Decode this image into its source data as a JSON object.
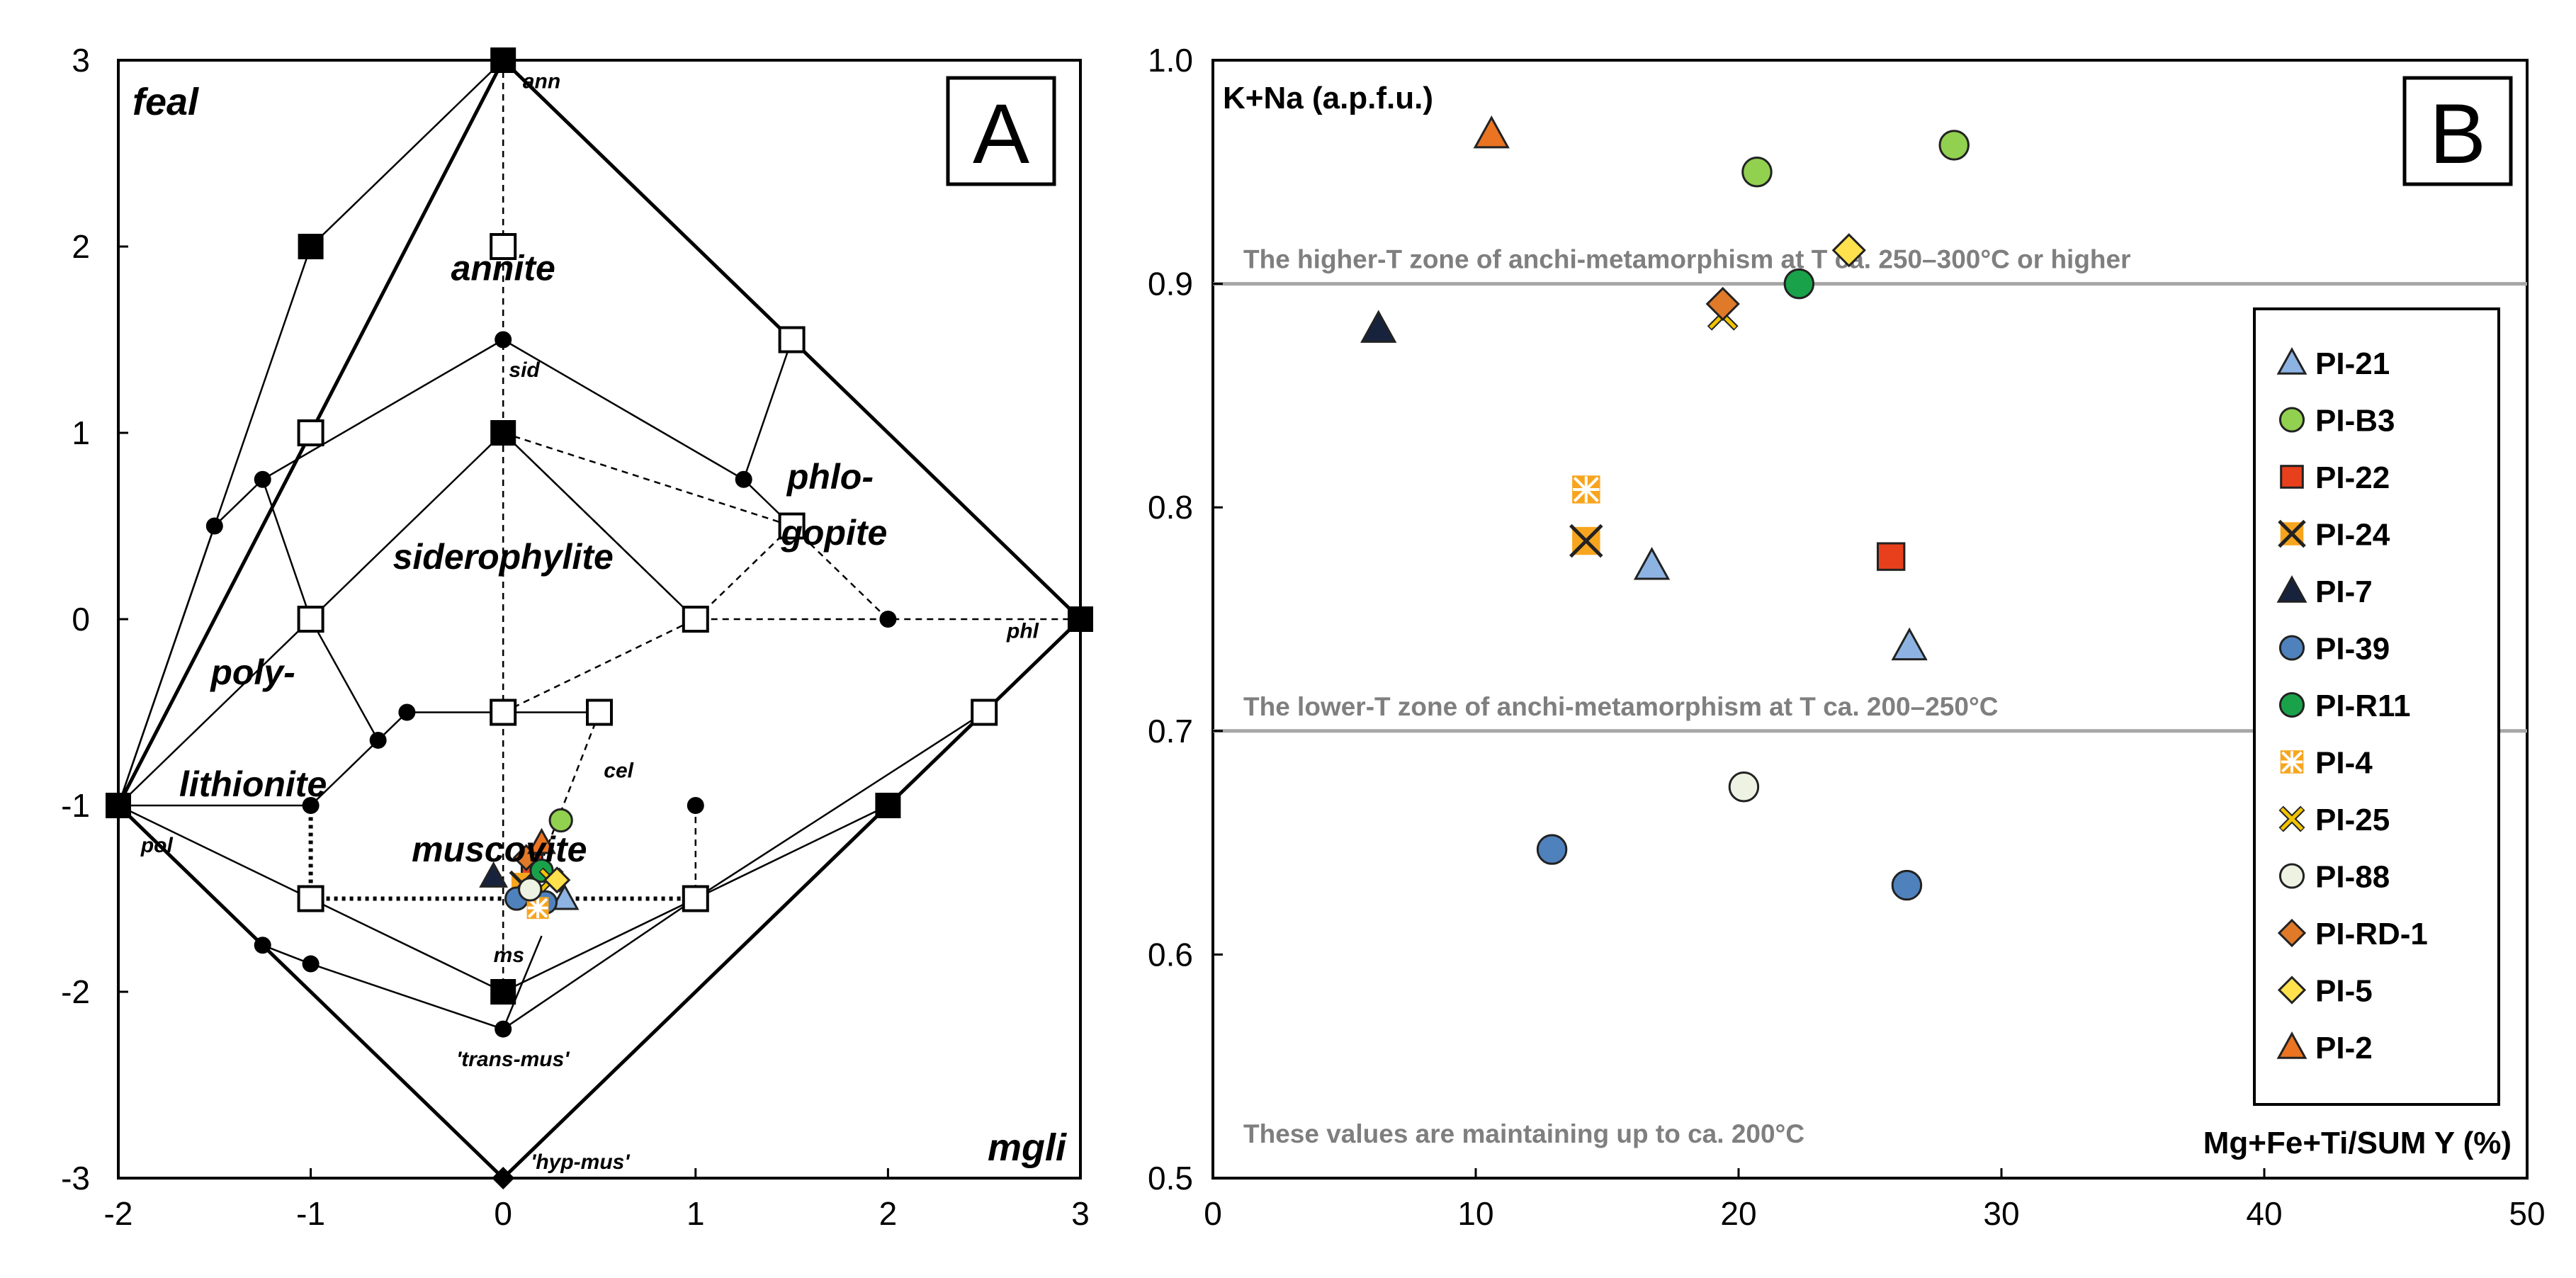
{
  "chart_data": [
    {
      "panel": "A",
      "type": "scatter",
      "panel_label": "A",
      "xlim": [
        -2,
        3
      ],
      "ylim": [
        -3,
        3
      ],
      "xticks": [
        "-2",
        "-1",
        "0",
        "1",
        "2",
        "3"
      ],
      "yticks": [
        "3",
        "2",
        "1",
        "0",
        "-1",
        "-2",
        "-3"
      ],
      "corner_labels": {
        "top_left": "feal",
        "bottom_right": "mgli"
      },
      "field_labels": [
        {
          "text": "annite",
          "x": 0.0,
          "y": 1.82
        },
        {
          "text": "siderophylite",
          "x": 0.0,
          "y": 0.27
        },
        {
          "text": "phlo-",
          "x": 1.7,
          "y": 0.7
        },
        {
          "text": "gopite",
          "x": 1.72,
          "y": 0.4
        },
        {
          "text": "poly-",
          "x": -1.3,
          "y": -0.35
        },
        {
          "text": "lithionite",
          "x": -1.3,
          "y": -0.95
        },
        {
          "text": "muscovite",
          "x": -0.02,
          "y": -1.3
        }
      ],
      "end_member_labels": [
        {
          "text": "ann",
          "x": 0.2,
          "y": 2.85
        },
        {
          "text": "sid",
          "x": 0.11,
          "y": 1.3
        },
        {
          "text": "phl",
          "x": 2.7,
          "y": -0.1
        },
        {
          "text": "pol",
          "x": -1.8,
          "y": -1.25
        },
        {
          "text": "cel",
          "x": 0.6,
          "y": -0.85
        },
        {
          "text": "ms",
          "x": 0.03,
          "y": -1.84
        },
        {
          "text": "'trans-mus'",
          "x": 0.05,
          "y": -2.4
        },
        {
          "text": "'hyp-mus'",
          "x": 0.4,
          "y": -2.95
        }
      ],
      "filled_squares": [
        [
          0,
          3
        ],
        [
          -1,
          2
        ],
        [
          0,
          1
        ],
        [
          3,
          0
        ],
        [
          -2,
          -1
        ],
        [
          2,
          -1
        ],
        [
          0,
          -2
        ]
      ],
      "open_squares": [
        [
          0,
          2
        ],
        [
          -1,
          1
        ],
        [
          1.5,
          1.5
        ],
        [
          1.5,
          0.5
        ],
        [
          -1,
          0
        ],
        [
          1,
          0
        ],
        [
          0,
          -0.5
        ],
        [
          0.5,
          -0.5
        ],
        [
          2.5,
          -0.5
        ],
        [
          -1,
          -1.5
        ],
        [
          1,
          -1.5
        ]
      ],
      "circle_nodes": [
        [
          0,
          1.5
        ],
        [
          -1.5,
          0.5
        ],
        [
          -1.25,
          0.75
        ],
        [
          1.25,
          0.75
        ],
        [
          2,
          0
        ],
        [
          -0.5,
          -0.5
        ],
        [
          -0.65,
          -0.65
        ],
        [
          -1,
          -1
        ],
        [
          1,
          -1
        ],
        [
          -1.25,
          -1.75
        ],
        [
          -1,
          -1.85
        ],
        [
          0,
          -2.2
        ]
      ],
      "diamond_nodes": [
        [
          0,
          -3
        ]
      ],
      "solid_lines": [
        [
          [
            0,
            3
          ],
          [
            3,
            0
          ],
          [
            0,
            -3
          ],
          [
            -2,
            -1
          ],
          [
            0,
            3
          ]
        ],
        [
          [
            -2,
            -1
          ],
          [
            -1,
            2
          ],
          [
            0,
            3
          ]
        ],
        [
          [
            0,
            3
          ],
          [
            1.5,
            1.5
          ],
          [
            3,
            0
          ]
        ],
        [
          [
            -2,
            -1
          ],
          [
            -1.5,
            0.5
          ],
          [
            -1.25,
            0.75
          ],
          [
            0,
            1.5
          ],
          [
            1.25,
            0.75
          ],
          [
            1.5,
            0.5
          ]
        ],
        [
          [
            -1.25,
            0.75
          ],
          [
            -1,
            0
          ],
          [
            -0.65,
            -0.65
          ],
          [
            -0.5,
            -0.5
          ],
          [
            0,
            -0.5
          ],
          [
            0.5,
            -0.5
          ]
        ],
        [
          [
            -2,
            -1
          ],
          [
            -1,
            0
          ],
          [
            0,
            1
          ],
          [
            1,
            0
          ]
        ],
        [
          [
            1.5,
            1.5
          ],
          [
            1.25,
            0.75
          ]
        ],
        [
          [
            -2,
            -1
          ],
          [
            -1,
            -1
          ],
          [
            -0.65,
            -0.65
          ]
        ],
        [
          [
            -2,
            -1
          ],
          [
            -1.25,
            -1.75
          ],
          [
            -1,
            -1.85
          ]
        ],
        [
          [
            -2,
            -1
          ],
          [
            -1,
            -1.5
          ],
          [
            0,
            -2
          ],
          [
            1,
            -1.5
          ],
          [
            2,
            -1
          ],
          [
            3,
            0
          ]
        ],
        [
          [
            -1,
            -1.85
          ],
          [
            0,
            -2.2
          ],
          [
            1,
            -1.5
          ],
          [
            2.5,
            -0.5
          ]
        ],
        [
          [
            0,
            -2.2
          ],
          [
            0.2,
            -1.7
          ]
        ]
      ],
      "dashed_lines": [
        [
          [
            0,
            3
          ],
          [
            0,
            -2
          ]
        ],
        [
          [
            -2,
            -1
          ],
          [
            -1,
            1
          ],
          [
            0,
            3
          ]
        ],
        [
          [
            0,
            1
          ],
          [
            1.5,
            0.5
          ],
          [
            2,
            0
          ],
          [
            3,
            0
          ]
        ],
        [
          [
            0,
            1
          ],
          [
            1,
            0
          ],
          [
            2,
            0
          ]
        ],
        [
          [
            0,
            -0.5
          ],
          [
            1,
            0
          ]
        ],
        [
          [
            0.5,
            -0.5
          ],
          [
            0.2,
            -1.3
          ]
        ],
        [
          [
            1,
            -1
          ],
          [
            1,
            -1.5
          ]
        ],
        [
          [
            1,
            0
          ],
          [
            1.5,
            0.5
          ]
        ]
      ],
      "dotted_lines": [
        [
          [
            -1,
            -1.5
          ],
          [
            1,
            -1.5
          ]
        ],
        [
          [
            -1,
            -1.5
          ],
          [
            -1,
            -1
          ]
        ]
      ],
      "samples": [
        {
          "name": "PI-21",
          "x": 0.32,
          "y": -1.5
        },
        {
          "name": "PI-B3",
          "x": 0.3,
          "y": -1.08
        },
        {
          "name": "PI-22",
          "x": 0.15,
          "y": -1.32
        },
        {
          "name": "PI-24",
          "x": 0.1,
          "y": -1.42
        },
        {
          "name": "PI-7",
          "x": -0.05,
          "y": -1.38
        },
        {
          "name": "PI-39",
          "x": 0.07,
          "y": -1.5
        },
        {
          "name": "PI-39",
          "x": 0.22,
          "y": -1.52
        },
        {
          "name": "PI-R11",
          "x": 0.2,
          "y": -1.35
        },
        {
          "name": "PI-4",
          "x": 0.18,
          "y": -1.55
        },
        {
          "name": "PI-25",
          "x": 0.25,
          "y": -1.4
        },
        {
          "name": "PI-88",
          "x": 0.14,
          "y": -1.45
        },
        {
          "name": "PI-RD-1",
          "x": 0.12,
          "y": -1.28
        },
        {
          "name": "PI-5",
          "x": 0.28,
          "y": -1.4
        },
        {
          "name": "PI-2",
          "x": 0.2,
          "y": -1.2
        }
      ]
    },
    {
      "panel": "B",
      "type": "scatter",
      "panel_label": "B",
      "xlabel": "Mg+Fe+Ti/SUM Y (%)",
      "ylabel": "K+Na (a.p.f.u.)",
      "xlim": [
        0,
        50
      ],
      "ylim": [
        0.5,
        1.0
      ],
      "xticks": [
        "0",
        "10",
        "20",
        "30",
        "40",
        "50"
      ],
      "yticks": [
        "1.0",
        "0.9",
        "0.8",
        "0.7",
        "0.6",
        "0.5"
      ],
      "reference_lines": [
        {
          "y": 0.9,
          "label": "The higher-T zone of anchi-metamorphism at T ca. 250–300°C or higher"
        },
        {
          "y": 0.7,
          "label": "The lower-T zone of anchi-metamorphism at T ca. 200–250°C"
        }
      ],
      "bottom_note": "These values are maintaining up to ca. 200°C",
      "series": [
        {
          "name": "PI-21",
          "marker": "triangle",
          "color": "#8db3e2",
          "points": [
            [
              16.7,
              0.774
            ],
            [
              26.5,
              0.738
            ]
          ]
        },
        {
          "name": "PI-B3",
          "marker": "circle",
          "color": "#92d050",
          "points": [
            [
              20.7,
              0.95
            ],
            [
              28.2,
              0.962
            ]
          ]
        },
        {
          "name": "PI-22",
          "marker": "square",
          "color": "#e8401c",
          "points": [
            [
              25.8,
              0.778
            ]
          ]
        },
        {
          "name": "PI-24",
          "marker": "square-x",
          "color": "#f7a51e",
          "points": [
            [
              14.2,
              0.785
            ]
          ]
        },
        {
          "name": "PI-7",
          "marker": "triangle",
          "color": "#17233d",
          "points": [
            [
              6.3,
              0.88
            ]
          ]
        },
        {
          "name": "PI-39",
          "marker": "circle",
          "color": "#4f81bd",
          "points": [
            [
              12.9,
              0.647
            ],
            [
              26.4,
              0.631
            ]
          ]
        },
        {
          "name": "PI-R11",
          "marker": "circle",
          "color": "#1aa24a",
          "points": [
            [
              22.3,
              0.9
            ]
          ]
        },
        {
          "name": "PI-4",
          "marker": "square-star",
          "color": "#f7a51e",
          "points": [
            [
              14.2,
              0.808
            ]
          ]
        },
        {
          "name": "PI-25",
          "marker": "x",
          "color": "#f2c400",
          "points": [
            [
              19.4,
              0.886
            ]
          ]
        },
        {
          "name": "PI-88",
          "marker": "circle",
          "color": "#eef2e2",
          "points": [
            [
              20.2,
              0.675
            ]
          ]
        },
        {
          "name": "PI-RD-1",
          "marker": "diamond",
          "color": "#e07a28",
          "points": [
            [
              19.4,
              0.891
            ]
          ]
        },
        {
          "name": "PI-5",
          "marker": "diamond",
          "color": "#ffe14d",
          "points": [
            [
              24.2,
              0.915
            ]
          ]
        },
        {
          "name": "PI-2",
          "marker": "triangle",
          "color": "#ea7422",
          "points": [
            [
              10.6,
              0.967
            ]
          ]
        }
      ]
    }
  ]
}
